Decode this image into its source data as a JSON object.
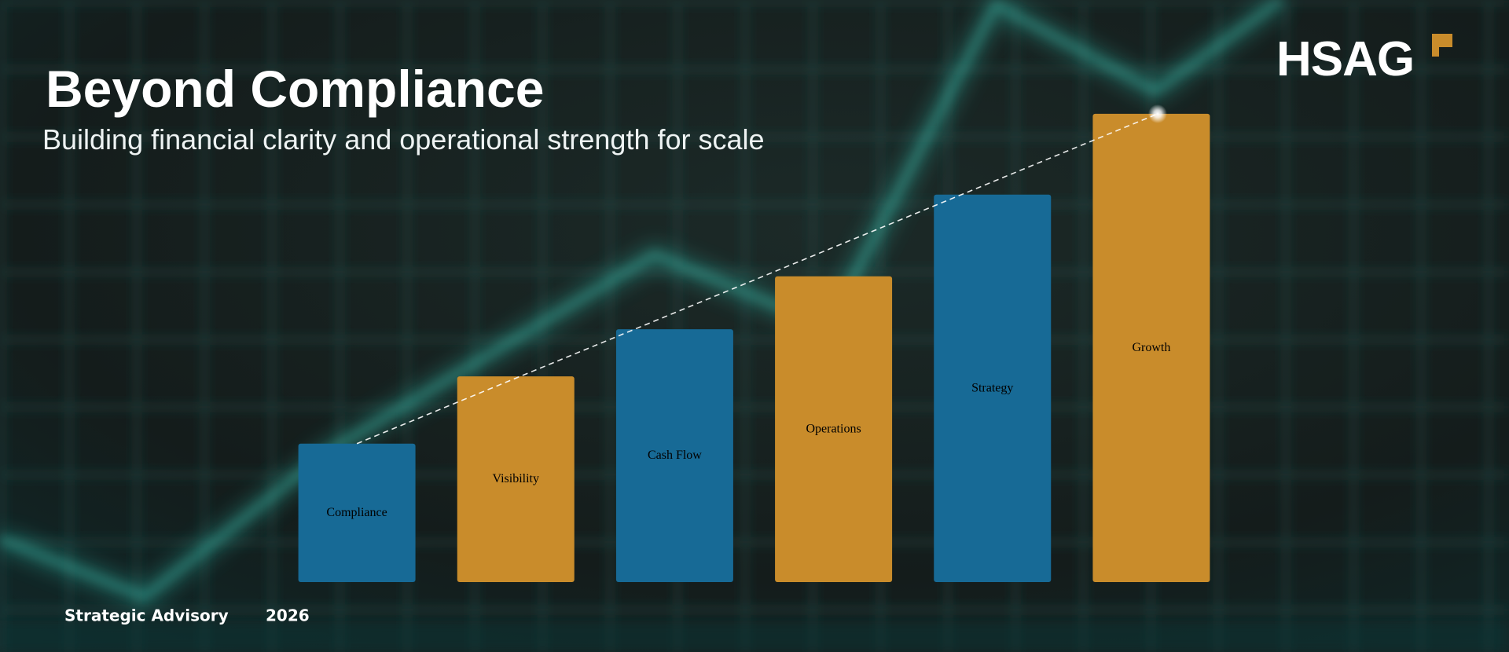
{
  "chart_data": {
    "type": "bar",
    "title": "Beyond Compliance",
    "subtitle": "Building financial clarity and operational strength for scale",
    "brand": "HSAG",
    "categories": [
      "Compliance",
      "Visibility",
      "Cash Flow",
      "Operations",
      "Strategy",
      "Growth"
    ],
    "values": [
      144,
      214,
      263,
      318,
      403,
      487
    ],
    "colors": [
      "#176a96",
      "#c98c2b",
      "#176a96",
      "#c98c2b",
      "#176a96",
      "#c98c2b"
    ],
    "ylim": [
      0,
      500
    ],
    "footer": [
      "Strategic Advisory",
      "2026"
    ]
  }
}
